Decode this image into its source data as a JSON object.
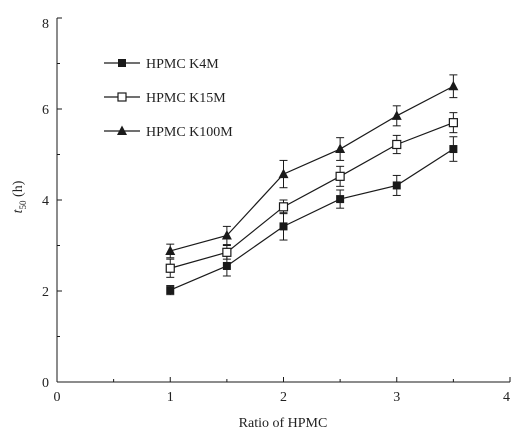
{
  "chart_data": {
    "type": "line",
    "xlabel": "Ratio of HPMC",
    "ylabel": {
      "main": "t",
      "sub": "50",
      "unit": " (h)"
    },
    "xlim": [
      0,
      4
    ],
    "ylim": [
      0,
      8
    ],
    "xticks": [
      "0",
      "1",
      "2",
      "3",
      "4"
    ],
    "yticks": [
      "0",
      "2",
      "4",
      "6",
      "8"
    ],
    "grid": false,
    "legend_position": "top-left",
    "x": [
      1,
      1.5,
      2,
      2.5,
      3,
      3.5
    ],
    "series": [
      {
        "name": "HPMC K4M",
        "marker": "filled-square",
        "values": [
          2.02,
          2.55,
          3.42,
          4.02,
          4.32,
          5.12
        ],
        "errors": [
          0.1,
          0.22,
          0.3,
          0.2,
          0.22,
          0.27
        ]
      },
      {
        "name": "HPMC K15M",
        "marker": "open-square",
        "values": [
          2.5,
          2.85,
          3.85,
          4.52,
          5.22,
          5.7
        ],
        "errors": [
          0.2,
          0.15,
          0.15,
          0.22,
          0.2,
          0.22
        ]
      },
      {
        "name": "HPMC K100M",
        "marker": "filled-triangle",
        "values": [
          2.88,
          3.22,
          4.57,
          5.12,
          5.85,
          6.5
        ],
        "errors": [
          0.15,
          0.2,
          0.3,
          0.25,
          0.22,
          0.25
        ]
      }
    ],
    "colors": {
      "line": "#1a1a1a",
      "marker": "#1a1a1a",
      "open_fill": "#ffffff"
    }
  }
}
